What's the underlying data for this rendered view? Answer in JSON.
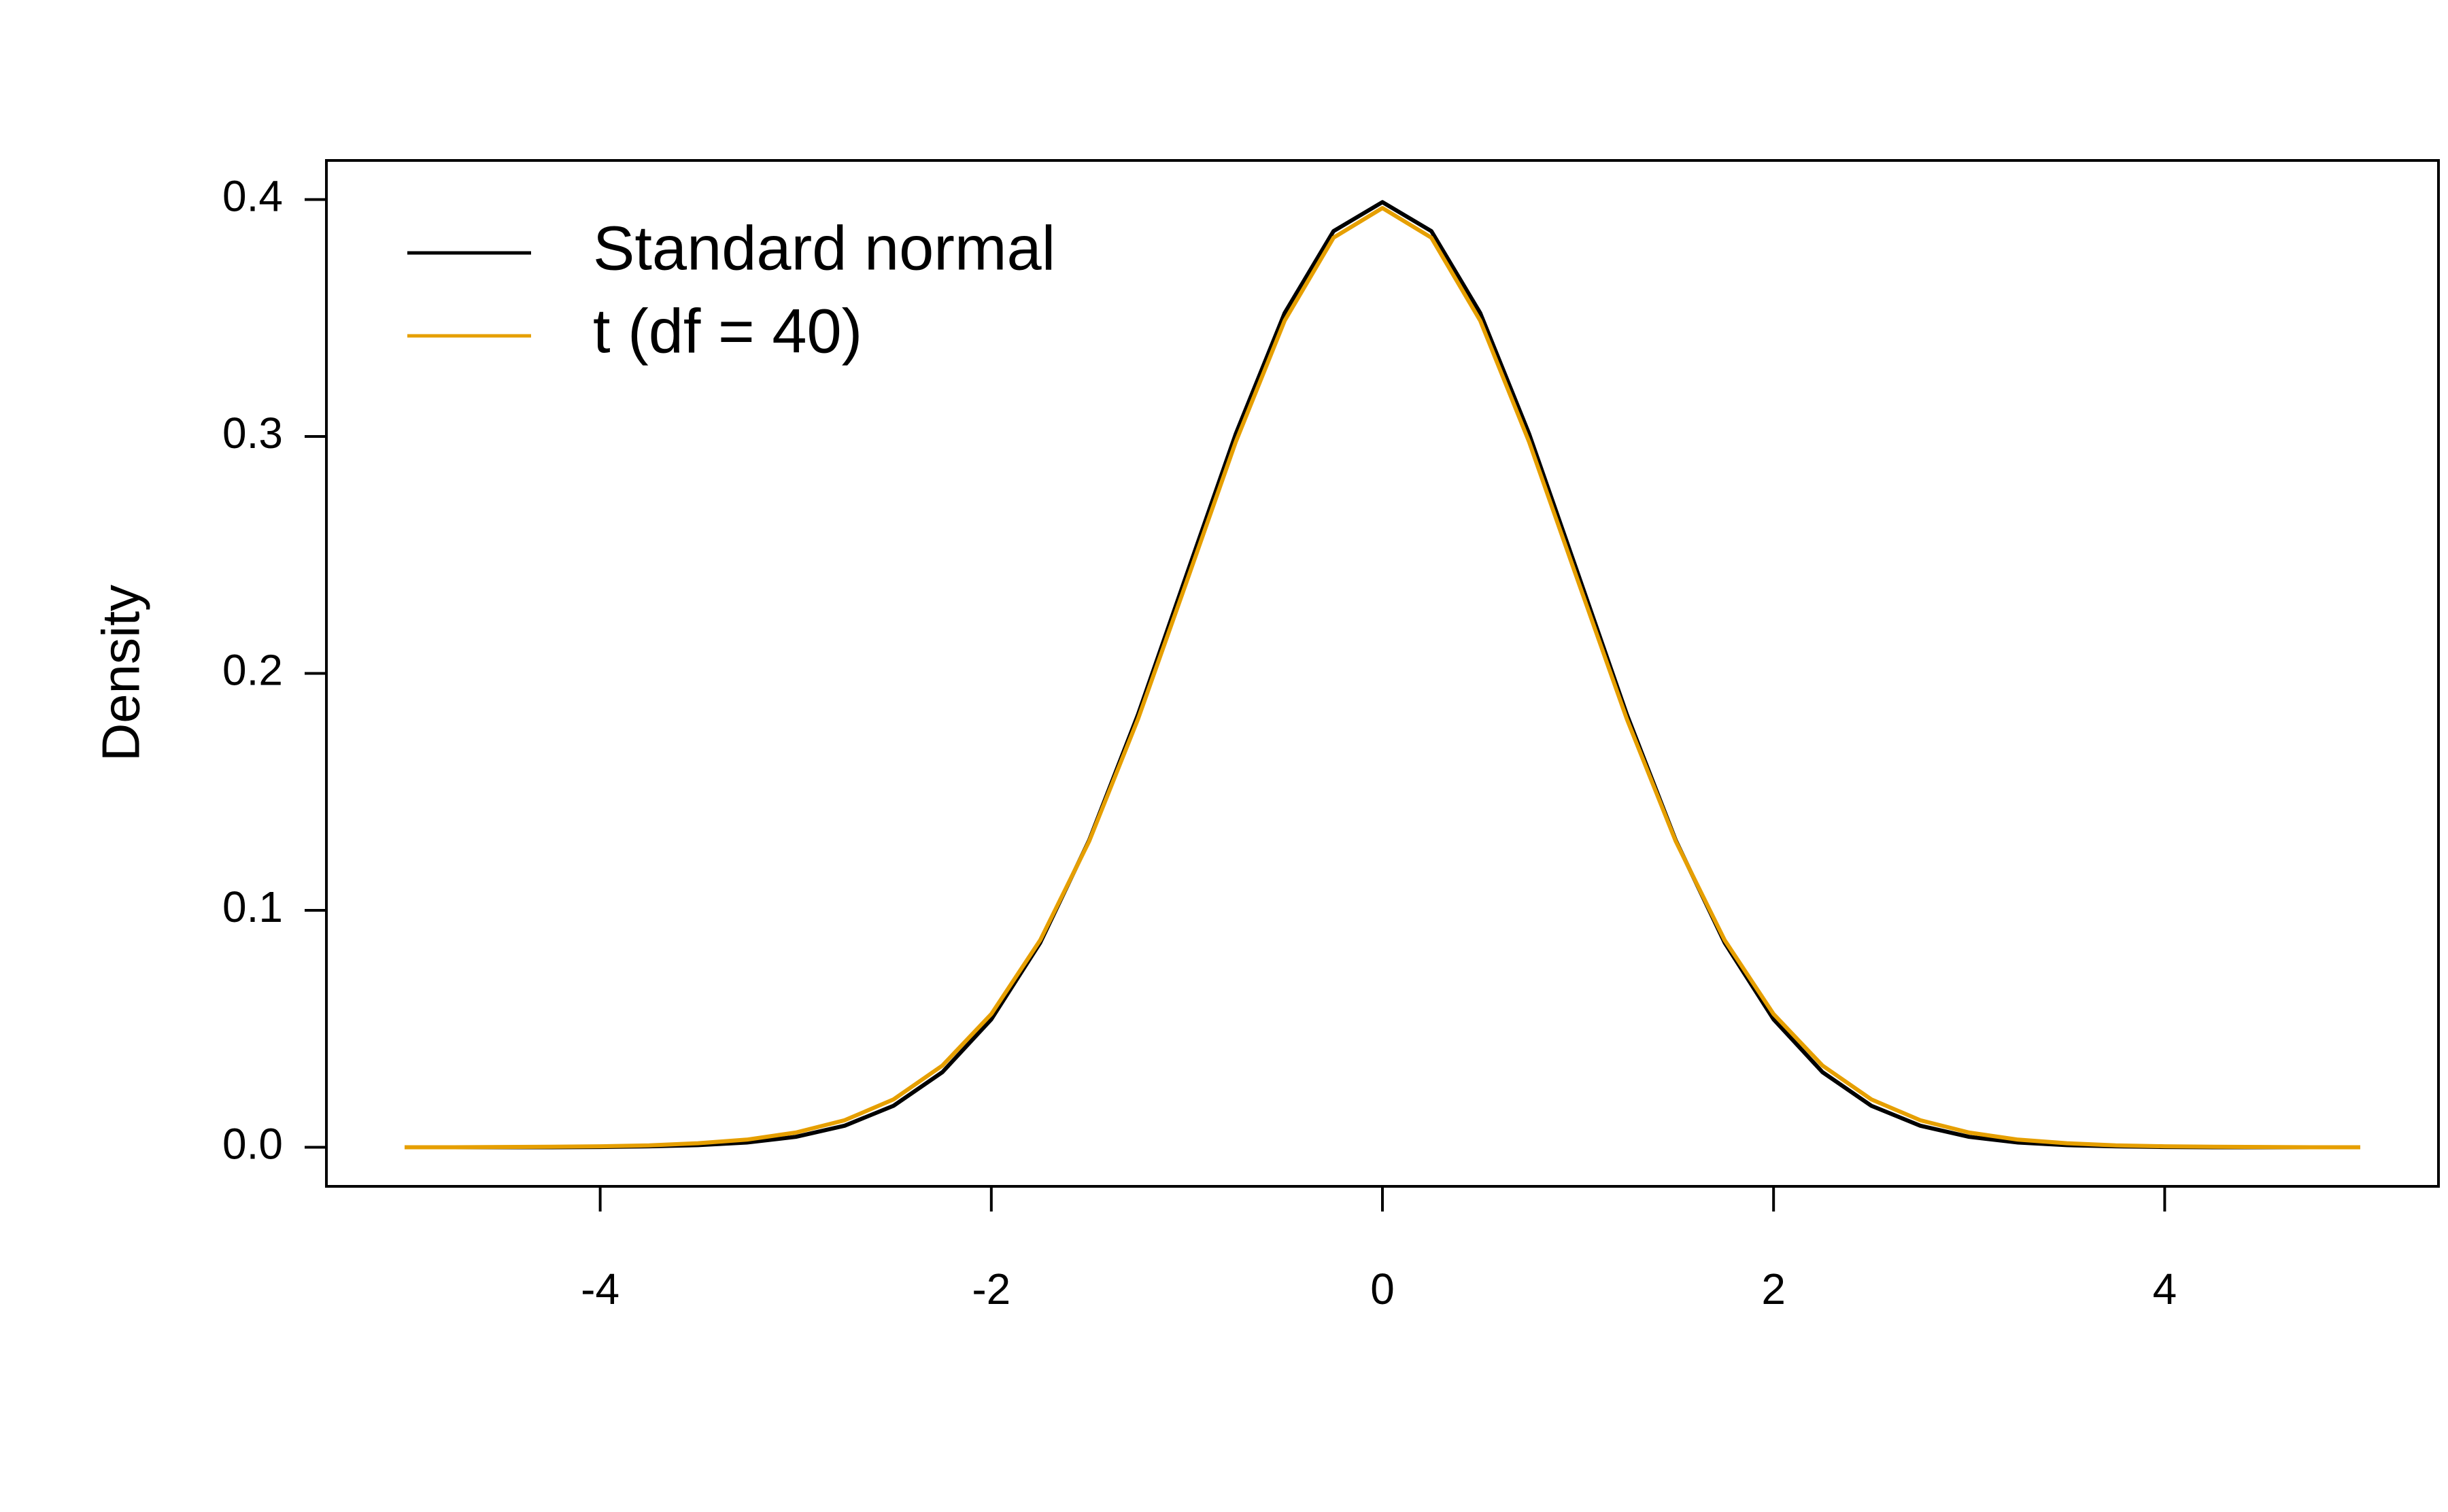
{
  "chart_data": {
    "type": "line",
    "y_label": "Density",
    "x": [
      -5,
      -4.75,
      -4.5,
      -4.25,
      -4,
      -3.75,
      -3.5,
      -3.25,
      -3,
      -2.75,
      -2.5,
      -2.25,
      -2,
      -1.75,
      -1.5,
      -1.25,
      -1,
      -0.75,
      -0.5,
      -0.25,
      0,
      0.25,
      0.5,
      0.75,
      1,
      1.25,
      1.5,
      1.75,
      2,
      2.25,
      2.5,
      2.75,
      3,
      3.25,
      3.5,
      3.75,
      4,
      4.25,
      4.5,
      4.75,
      5
    ],
    "series": [
      {
        "name": "Standard normal",
        "color": "#000000",
        "values": [
          0,
          0,
          0,
          0,
          0.0001,
          0.0004,
          0.0009,
          0.002,
          0.0044,
          0.0091,
          0.0175,
          0.0317,
          0.054,
          0.0863,
          0.1295,
          0.1826,
          0.242,
          0.3011,
          0.3521,
          0.3867,
          0.3989,
          0.3867,
          0.3521,
          0.3011,
          0.242,
          0.1826,
          0.1295,
          0.0863,
          0.054,
          0.0317,
          0.0175,
          0.0091,
          0.0044,
          0.002,
          0.0009,
          0.0004,
          0.0001,
          0,
          0,
          0,
          0
        ]
      },
      {
        "name": "t (df = 40)",
        "color": "#E69F00",
        "values": [
          0,
          0,
          0.0001,
          0.0002,
          0.0004,
          0.0008,
          0.0017,
          0.0032,
          0.0062,
          0.0114,
          0.0202,
          0.0345,
          0.0562,
          0.0874,
          0.1291,
          0.1807,
          0.239,
          0.2977,
          0.3489,
          0.3839,
          0.3964,
          0.3839,
          0.3489,
          0.2977,
          0.239,
          0.1807,
          0.1291,
          0.0874,
          0.0562,
          0.0345,
          0.0202,
          0.0114,
          0.0062,
          0.0032,
          0.0017,
          0.0008,
          0.0004,
          0.0002,
          0.0001,
          0,
          0
        ]
      }
    ],
    "xlim": [
      -5.4,
      5.4
    ],
    "ylim": [
      -0.0165,
      0.4165
    ],
    "xticks": [
      -4,
      -2,
      0,
      2,
      4
    ],
    "yticks": [
      {
        "value": 0,
        "label": "0.0"
      },
      0.1,
      0.2,
      0.3,
      0.4
    ],
    "grid": false,
    "legend": "top-left"
  }
}
